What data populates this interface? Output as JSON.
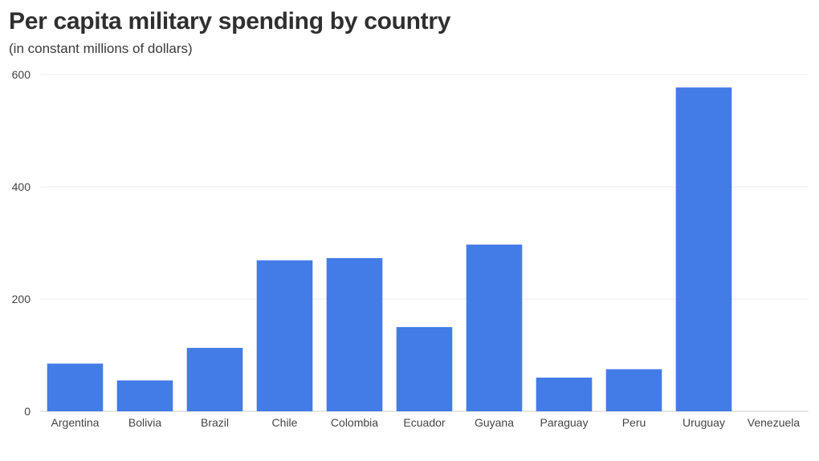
{
  "chart_data": {
    "type": "bar",
    "title": "Per capita military spending by country",
    "subtitle": "(in constant millions of dollars)",
    "categories": [
      "Argentina",
      "Bolivia",
      "Brazil",
      "Chile",
      "Colombia",
      "Ecuador",
      "Guyana",
      "Paraguay",
      "Peru",
      "Uruguay",
      "Venezuela"
    ],
    "values": [
      85,
      55,
      113,
      269,
      273,
      150,
      297,
      60,
      75,
      577,
      0
    ],
    "ylim": [
      0,
      600
    ],
    "yticks": [
      0,
      200,
      400,
      600
    ],
    "xlabel": "",
    "ylabel": "",
    "grid": true,
    "bar_color": "#3d77e6"
  }
}
